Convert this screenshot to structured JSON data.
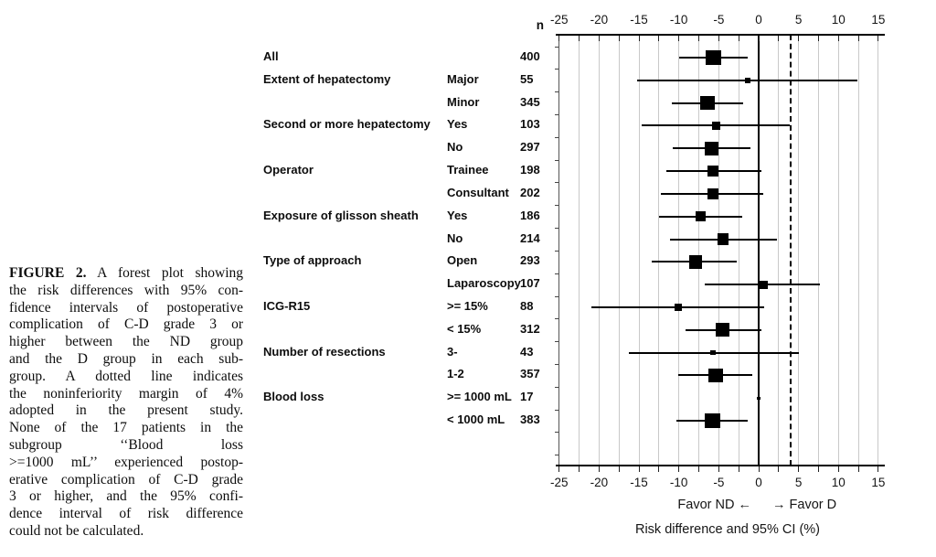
{
  "figure": {
    "figure_label": "FIGURE 2.",
    "caption_lines": [
      "A forest plot showing",
      "the risk differences with 95% con-",
      "fidence intervals of postoperative",
      "complication of C-D grade 3 or",
      "higher between the ND group",
      "and the D group in each sub-",
      "group. A dotted line indicates",
      "the noninferiority margin of 4%",
      "adopted in the present study.",
      "None of the 17 patients in the",
      "subgroup ‘‘Blood loss",
      ">=1000 mL’’ experienced postop-",
      "erative complication of C-D grade",
      "3 or higher, and the 95% confi-",
      "dence interval of risk difference",
      "could not be calculated."
    ]
  },
  "plot": {
    "n_header": "n",
    "favor_nd": "Favor ND ←",
    "favor_d": "→ Favor D",
    "xlabel": "Risk difference and 95% CI (%)"
  },
  "chart_data": {
    "type": "forest",
    "title": "",
    "xlabel": "Risk difference and 95% CI (%)",
    "x_axis": {
      "range": [
        -25.3,
        15.9
      ],
      "major_ticks": [
        -25,
        -20,
        -15,
        -10,
        -5,
        0,
        5,
        10,
        15
      ],
      "minor_step": 2.5,
      "grid": true,
      "zero_line": 0,
      "noninferiority_margin": 4,
      "noninferiority_line_style": "dashed"
    },
    "direction_labels": {
      "left": "Favor ND ←",
      "right": "→ Favor D"
    },
    "n_header": "n",
    "rows": [
      {
        "group": "All",
        "subgroup": "",
        "n": 400,
        "estimate": -5.7,
        "ci_low": -10.0,
        "ci_high": -1.4
      },
      {
        "group": "Extent of hepatectomy",
        "subgroup": "Major",
        "n": 55,
        "estimate": -1.4,
        "ci_low": -15.2,
        "ci_high": 12.4
      },
      {
        "group": "",
        "subgroup": "Minor",
        "n": 345,
        "estimate": -6.4,
        "ci_low": -10.9,
        "ci_high": -1.9
      },
      {
        "group": "Second or more hepatectomy",
        "subgroup": "Yes",
        "n": 103,
        "estimate": -5.3,
        "ci_low": -14.7,
        "ci_high": 3.9
      },
      {
        "group": "",
        "subgroup": "No",
        "n": 297,
        "estimate": -5.9,
        "ci_low": -10.8,
        "ci_high": -1.0
      },
      {
        "group": "Operator",
        "subgroup": "Trainee",
        "n": 198,
        "estimate": -5.7,
        "ci_low": -11.6,
        "ci_high": 0.4
      },
      {
        "group": "",
        "subgroup": "Consultant",
        "n": 202,
        "estimate": -5.7,
        "ci_low": -12.2,
        "ci_high": 0.6
      },
      {
        "group": "Exposure of glisson sheath",
        "subgroup": "Yes",
        "n": 186,
        "estimate": -7.3,
        "ci_low": -12.5,
        "ci_high": -2.1
      },
      {
        "group": "",
        "subgroup": "No",
        "n": 214,
        "estimate": -4.5,
        "ci_low": -11.1,
        "ci_high": 2.3
      },
      {
        "group": "Type of approach",
        "subgroup": "Open",
        "n": 293,
        "estimate": -7.9,
        "ci_low": -13.4,
        "ci_high": -2.7
      },
      {
        "group": "",
        "subgroup": "Laparoscopy",
        "n": 107,
        "estimate": 0.6,
        "ci_low": -6.8,
        "ci_high": 7.7
      },
      {
        "group": "ICG-R15",
        "subgroup": ">= 15%",
        "n": 88,
        "estimate": -10.1,
        "ci_low": -21.0,
        "ci_high": 0.7
      },
      {
        "group": "",
        "subgroup": "< 15%",
        "n": 312,
        "estimate": -4.5,
        "ci_low": -9.2,
        "ci_high": 0.4
      },
      {
        "group": "Number of resections",
        "subgroup": "3-",
        "n": 43,
        "estimate": -5.7,
        "ci_low": -16.3,
        "ci_high": 5.0
      },
      {
        "group": "",
        "subgroup": "1-2",
        "n": 357,
        "estimate": -5.4,
        "ci_low": -10.1,
        "ci_high": -0.8
      },
      {
        "group": "Blood loss",
        "subgroup": ">= 1000 mL",
        "n": 17,
        "estimate": 0.0,
        "ci_low": null,
        "ci_high": null
      },
      {
        "group": "",
        "subgroup": "< 1000 mL",
        "n": 383,
        "estimate": -5.8,
        "ci_low": -10.3,
        "ci_high": -1.4
      }
    ]
  }
}
